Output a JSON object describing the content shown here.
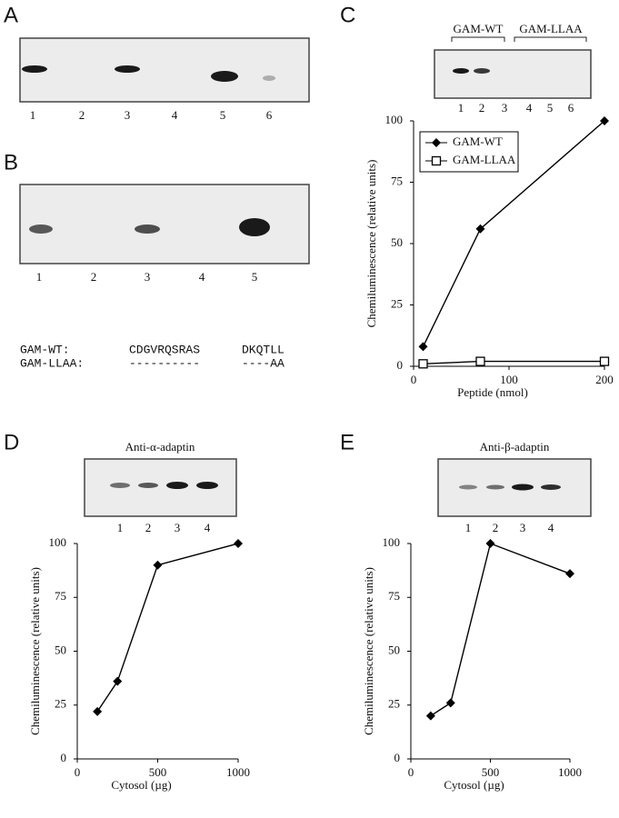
{
  "figure": {
    "A": {
      "label": "A",
      "lanes": [
        "1",
        "2",
        "3",
        "4",
        "5",
        "6"
      ]
    },
    "B": {
      "label": "B",
      "lanes": [
        "1",
        "2",
        "3",
        "4",
        "5"
      ]
    },
    "sequence": {
      "rows": [
        [
          "GAM-WT:",
          "CDGVRQSRAS",
          "DKQTLL"
        ],
        [
          "GAM-LLAA:",
          "----------",
          "----AA"
        ]
      ]
    },
    "C": {
      "label": "C",
      "groups": [
        "GAM-WT",
        "GAM-LLAA"
      ],
      "lanes": [
        "1",
        "2",
        "3",
        "4",
        "5",
        "6"
      ]
    },
    "D": {
      "label": "D",
      "blot_title": "Anti-α-adaptin",
      "lanes": [
        "1",
        "2",
        "3",
        "4"
      ]
    },
    "E": {
      "label": "E",
      "blot_title": "Anti-β-adaptin",
      "lanes": [
        "1",
        "2",
        "3",
        "4"
      ]
    }
  },
  "chart_data": [
    {
      "type": "line",
      "x_label": "Peptide (nmol)",
      "y_label": "Chemiluminescence (relative units)",
      "x": [
        10,
        70,
        200
      ],
      "series": [
        {
          "name": "GAM-WT",
          "color": "#000000",
          "marker": "diamond",
          "values": [
            8,
            56,
            100
          ]
        },
        {
          "name": "GAM-LLAA",
          "color": "#000000",
          "marker": "square",
          "values": [
            1,
            2,
            2
          ]
        }
      ],
      "xlim": [
        0,
        200
      ],
      "xticks": [
        0,
        100,
        200
      ],
      "ylim": [
        0,
        100
      ],
      "yticks": [
        0,
        25,
        50,
        75,
        100
      ],
      "legend": "top-left"
    },
    {
      "type": "line",
      "x_label": "Cytosol (µg)",
      "y_label": "Chemiluminescence (relative units)",
      "x": [
        125,
        250,
        500,
        1000
      ],
      "series": [
        {
          "color": "#000000",
          "marker": "diamond",
          "values": [
            22,
            36,
            90,
            100
          ]
        }
      ],
      "xlim": [
        0,
        1000
      ],
      "xticks": [
        0,
        500,
        1000
      ],
      "ylim": [
        0,
        100
      ],
      "yticks": [
        0,
        25,
        50,
        75,
        100
      ]
    },
    {
      "type": "line",
      "x_label": "Cytosol (µg)",
      "y_label": "Chemiluminescence (relative units)",
      "x": [
        125,
        250,
        500,
        1000
      ],
      "series": [
        {
          "color": "#000000",
          "marker": "diamond",
          "values": [
            20,
            26,
            100,
            86
          ]
        }
      ],
      "xlim": [
        0,
        1000
      ],
      "xticks": [
        0,
        500,
        1000
      ],
      "ylim": [
        0,
        100
      ],
      "yticks": [
        0,
        25,
        50,
        75,
        100
      ]
    }
  ]
}
